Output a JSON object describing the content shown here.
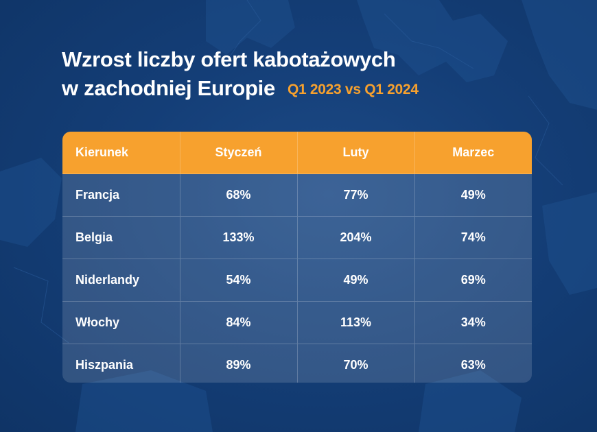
{
  "title": {
    "line1": "Wzrost liczby ofert kabotażowych",
    "line2": "w zachodniej Europie",
    "period": "Q1 2023 vs Q1 2024"
  },
  "colors": {
    "background": "#143e77",
    "accent": "#f7a12e",
    "text": "#ffffff"
  },
  "table": {
    "headers": [
      "Kierunek",
      "Styczeń",
      "Luty",
      "Marzec"
    ],
    "rows": [
      [
        "Francja",
        "68%",
        "77%",
        "49%"
      ],
      [
        "Belgia",
        "133%",
        "204%",
        "74%"
      ],
      [
        "Niderlandy",
        "54%",
        "49%",
        "69%"
      ],
      [
        "Włochy",
        "84%",
        "113%",
        "34%"
      ],
      [
        "Hiszpania",
        "89%",
        "70%",
        "63%"
      ]
    ]
  }
}
